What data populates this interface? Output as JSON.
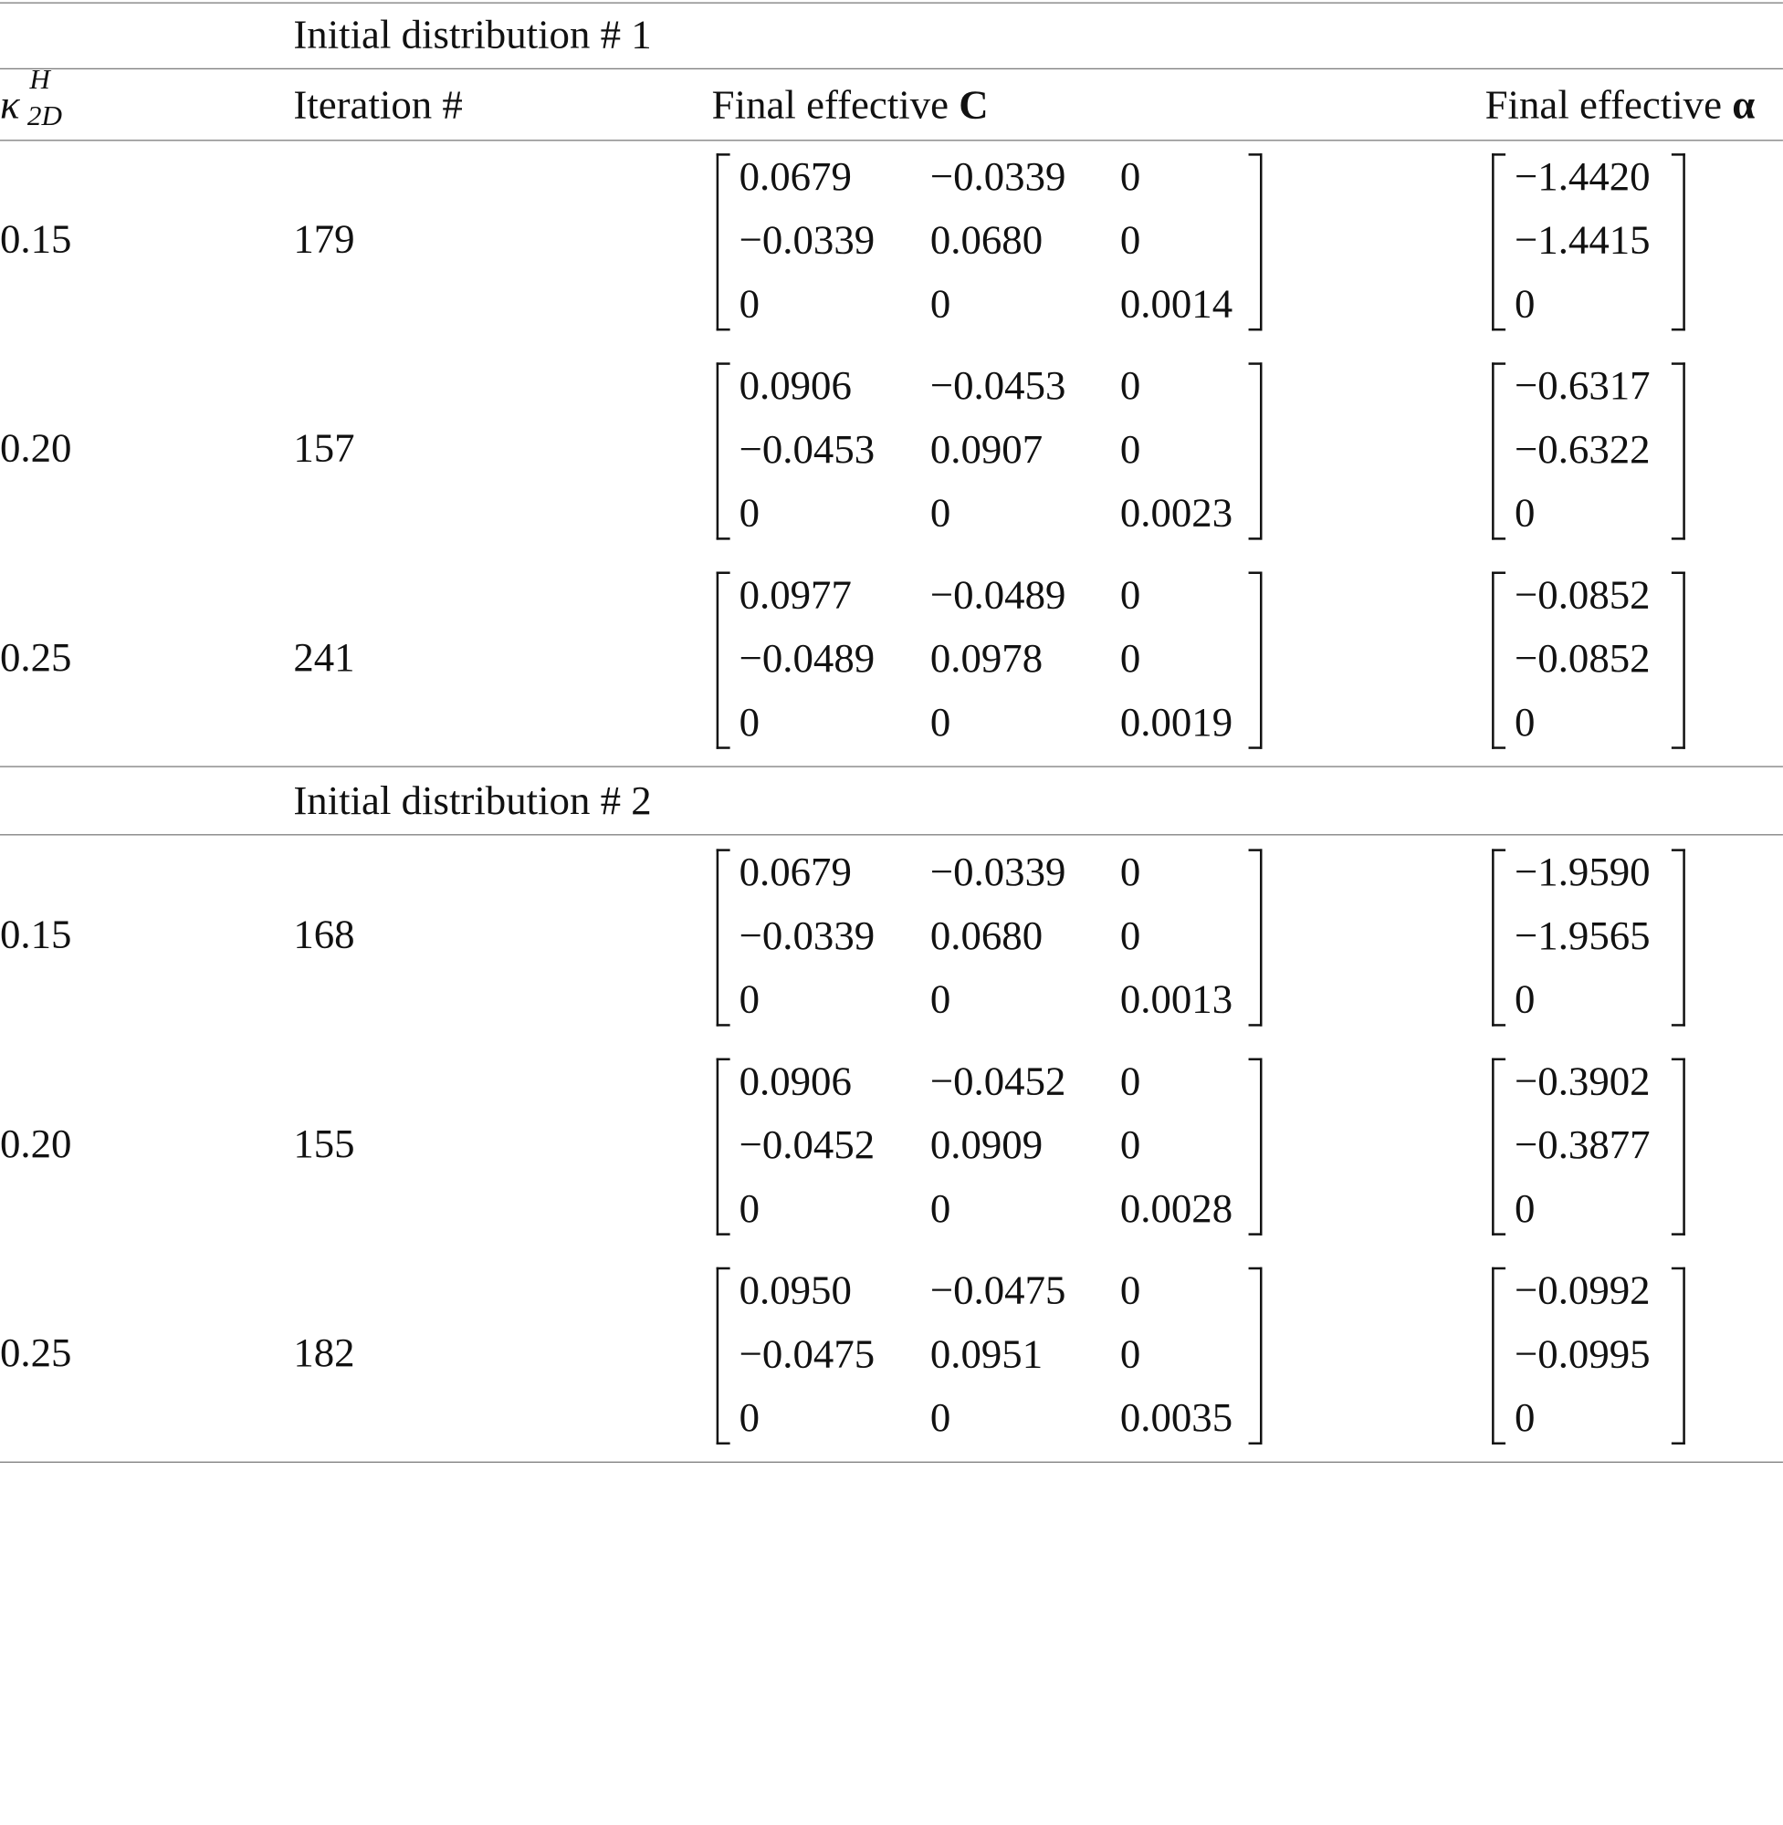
{
  "table": {
    "headers": {
      "col1": {
        "base": "κ",
        "sup": "H",
        "sub": "2D"
      },
      "col2": "Iteration #",
      "col3_prefix": "Final effective ",
      "col3_symbol": "C",
      "col4_prefix": "Final effective ",
      "col4_symbol": "α"
    },
    "sections": [
      {
        "title": "Initial distribution # 1",
        "rows": [
          {
            "kappa": "0.15",
            "iteration": "179",
            "matrix": [
              [
                "0.0679",
                "−0.0339",
                "0"
              ],
              [
                "−0.0339",
                "0.0680",
                "0"
              ],
              [
                "0",
                "0",
                "0.0014"
              ]
            ],
            "alpha": [
              "−1.4420",
              "−1.4415",
              "0"
            ]
          },
          {
            "kappa": "0.20",
            "iteration": "157",
            "matrix": [
              [
                "0.0906",
                "−0.0453",
                "0"
              ],
              [
                "−0.0453",
                "0.0907",
                "0"
              ],
              [
                "0",
                "0",
                "0.0023"
              ]
            ],
            "alpha": [
              "−0.6317",
              "−0.6322",
              "0"
            ]
          },
          {
            "kappa": "0.25",
            "iteration": "241",
            "matrix": [
              [
                "0.0977",
                "−0.0489",
                "0"
              ],
              [
                "−0.0489",
                "0.0978",
                "0"
              ],
              [
                "0",
                "0",
                "0.0019"
              ]
            ],
            "alpha": [
              "−0.0852",
              "−0.0852",
              "0"
            ]
          }
        ]
      },
      {
        "title": "Initial distribution # 2",
        "rows": [
          {
            "kappa": "0.15",
            "iteration": "168",
            "matrix": [
              [
                "0.0679",
                "−0.0339",
                "0"
              ],
              [
                "−0.0339",
                "0.0680",
                "0"
              ],
              [
                "0",
                "0",
                "0.0013"
              ]
            ],
            "alpha": [
              "−1.9590",
              "−1.9565",
              "0"
            ]
          },
          {
            "kappa": "0.20",
            "iteration": "155",
            "matrix": [
              [
                "0.0906",
                "−0.0452",
                "0"
              ],
              [
                "−0.0452",
                "0.0909",
                "0"
              ],
              [
                "0",
                "0",
                "0.0028"
              ]
            ],
            "alpha": [
              "−0.3902",
              "−0.3877",
              "0"
            ]
          },
          {
            "kappa": "0.25",
            "iteration": "182",
            "matrix": [
              [
                "0.0950",
                "−0.0475",
                "0"
              ],
              [
                "−0.0475",
                "0.0951",
                "0"
              ],
              [
                "0",
                "0",
                "0.0035"
              ]
            ],
            "alpha": [
              "−0.0992",
              "−0.0995",
              "0"
            ]
          }
        ]
      }
    ]
  }
}
